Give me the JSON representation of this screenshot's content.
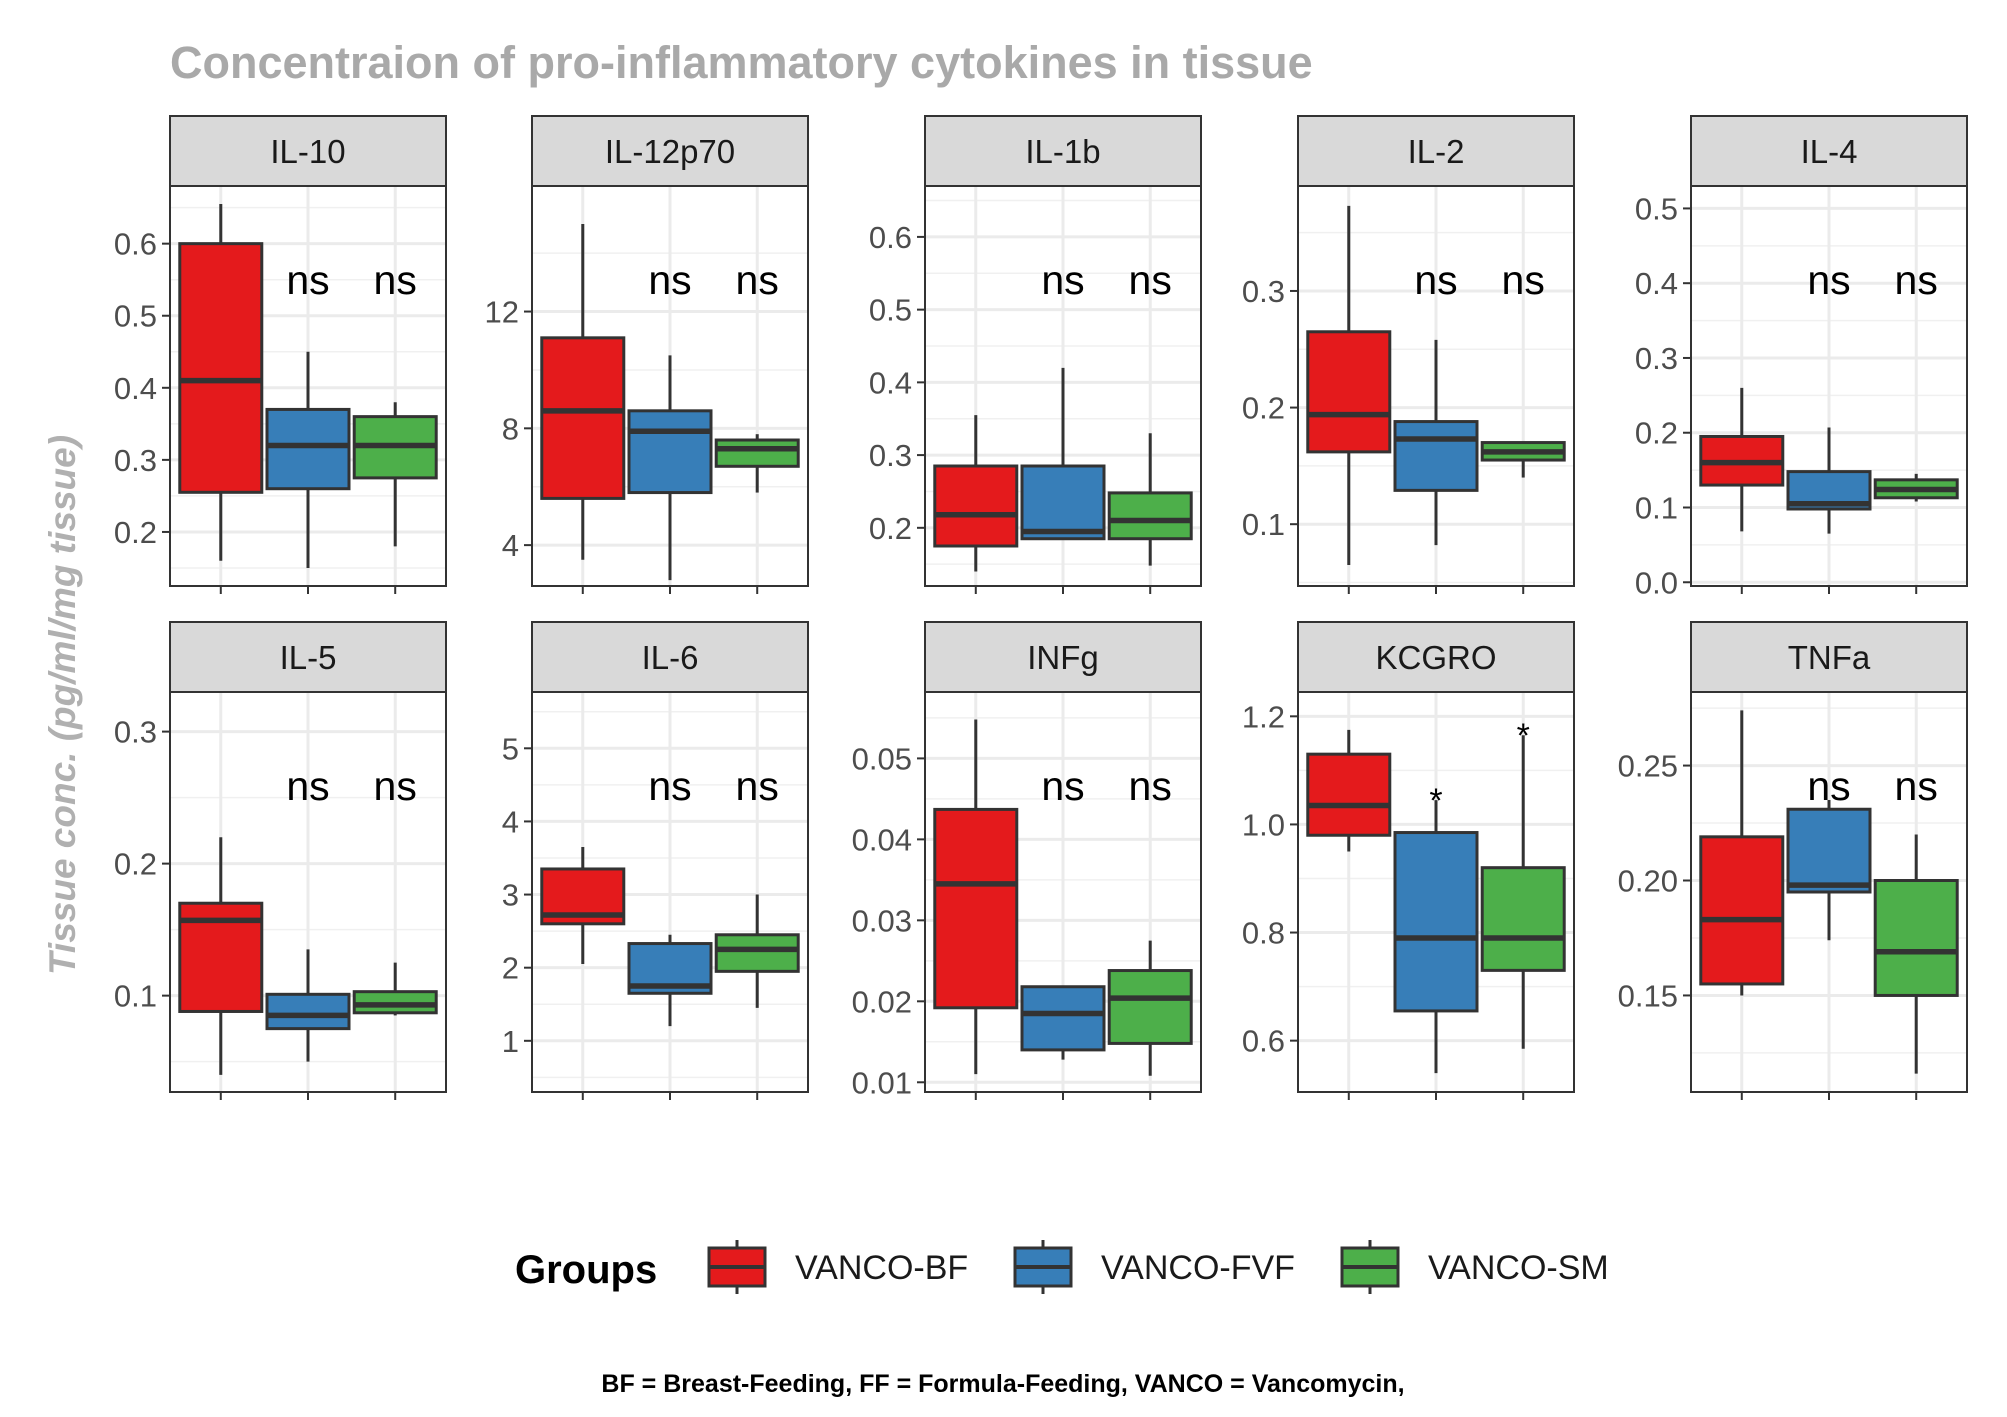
{
  "chart_data": {
    "type": "boxplot",
    "title": "Concentraion of pro-inflammatory cytokines in tissue",
    "ylabel": "Tissue conc. (pg/ml/mg tissue)",
    "xlabel": "",
    "caption": "BF = Breast-Feeding, FF = Formula-Feeding, VANCO = Vancomycin,",
    "legend": {
      "title": "Groups",
      "position": "bottom",
      "entries": [
        {
          "name": "VANCO-BF",
          "color": "#e41a1c"
        },
        {
          "name": "VANCO-FVF",
          "color": "#377eb8"
        },
        {
          "name": "VANCO-SM",
          "color": "#4daf4a"
        }
      ]
    },
    "grid": true,
    "facets": [
      {
        "name": "IL-10",
        "ylim": [
          0.125,
          0.68
        ],
        "yticks": [
          {
            "v": 0.2,
            "label": "0.2"
          },
          {
            "v": 0.3,
            "label": "0.3"
          },
          {
            "v": 0.4,
            "label": "0.4"
          },
          {
            "v": 0.5,
            "label": "0.5"
          },
          {
            "v": 0.6,
            "label": "0.6"
          }
        ],
        "groups": [
          {
            "min": 0.16,
            "q1": 0.255,
            "median": 0.41,
            "q3": 0.6,
            "max": 0.655,
            "label": ""
          },
          {
            "min": 0.15,
            "q1": 0.26,
            "median": 0.32,
            "q3": 0.37,
            "max": 0.45,
            "label": "ns"
          },
          {
            "min": 0.18,
            "q1": 0.275,
            "median": 0.32,
            "q3": 0.36,
            "max": 0.38,
            "label": "ns"
          }
        ]
      },
      {
        "name": "IL-12p70",
        "ylim": [
          2.6,
          16.3
        ],
        "yticks": [
          {
            "v": 4,
            "label": "4"
          },
          {
            "v": 8,
            "label": "8"
          },
          {
            "v": 12,
            "label": "12"
          }
        ],
        "groups": [
          {
            "min": 3.5,
            "q1": 5.6,
            "median": 8.6,
            "q3": 11.1,
            "max": 15.0,
            "label": ""
          },
          {
            "min": 2.8,
            "q1": 5.8,
            "median": 7.9,
            "q3": 8.6,
            "max": 10.5,
            "label": "ns"
          },
          {
            "min": 5.8,
            "q1": 6.7,
            "median": 7.3,
            "q3": 7.6,
            "max": 7.8,
            "label": "ns"
          }
        ]
      },
      {
        "name": "IL-1b",
        "ylim": [
          0.12,
          0.67
        ],
        "yticks": [
          {
            "v": 0.2,
            "label": "0.2"
          },
          {
            "v": 0.3,
            "label": "0.3"
          },
          {
            "v": 0.4,
            "label": "0.4"
          },
          {
            "v": 0.5,
            "label": "0.5"
          },
          {
            "v": 0.6,
            "label": "0.6"
          }
        ],
        "groups": [
          {
            "min": 0.14,
            "q1": 0.175,
            "median": 0.218,
            "q3": 0.285,
            "max": 0.355,
            "label": ""
          },
          {
            "min": 0.185,
            "q1": 0.185,
            "median": 0.195,
            "q3": 0.285,
            "max": 0.42,
            "label": "ns"
          },
          {
            "min": 0.148,
            "q1": 0.185,
            "median": 0.21,
            "q3": 0.248,
            "max": 0.33,
            "label": "ns"
          }
        ]
      },
      {
        "name": "IL-2",
        "ylim": [
          0.047,
          0.39
        ],
        "yticks": [
          {
            "v": 0.1,
            "label": "0.1"
          },
          {
            "v": 0.2,
            "label": "0.2"
          },
          {
            "v": 0.3,
            "label": "0.3"
          }
        ],
        "groups": [
          {
            "min": 0.065,
            "q1": 0.162,
            "median": 0.194,
            "q3": 0.265,
            "max": 0.373,
            "label": ""
          },
          {
            "min": 0.082,
            "q1": 0.129,
            "median": 0.173,
            "q3": 0.188,
            "max": 0.258,
            "label": "ns"
          },
          {
            "min": 0.14,
            "q1": 0.155,
            "median": 0.162,
            "q3": 0.17,
            "max": 0.17,
            "label": "ns"
          }
        ]
      },
      {
        "name": "IL-4",
        "ylim": [
          -0.005,
          0.53
        ],
        "yticks": [
          {
            "v": 0.0,
            "label": "0.0"
          },
          {
            "v": 0.1,
            "label": "0.1"
          },
          {
            "v": 0.2,
            "label": "0.2"
          },
          {
            "v": 0.3,
            "label": "0.3"
          },
          {
            "v": 0.4,
            "label": "0.4"
          },
          {
            "v": 0.5,
            "label": "0.5"
          }
        ],
        "groups": [
          {
            "min": 0.068,
            "q1": 0.13,
            "median": 0.16,
            "q3": 0.195,
            "max": 0.26,
            "label": ""
          },
          {
            "min": 0.065,
            "q1": 0.098,
            "median": 0.105,
            "q3": 0.148,
            "max": 0.207,
            "label": "ns"
          },
          {
            "min": 0.108,
            "q1": 0.113,
            "median": 0.124,
            "q3": 0.137,
            "max": 0.145,
            "label": "ns"
          }
        ]
      },
      {
        "name": "IL-5",
        "ylim": [
          0.027,
          0.33
        ],
        "yticks": [
          {
            "v": 0.1,
            "label": "0.1"
          },
          {
            "v": 0.2,
            "label": "0.2"
          },
          {
            "v": 0.3,
            "label": "0.3"
          }
        ],
        "groups": [
          {
            "min": 0.04,
            "q1": 0.088,
            "median": 0.157,
            "q3": 0.17,
            "max": 0.22,
            "label": ""
          },
          {
            "min": 0.05,
            "q1": 0.075,
            "median": 0.085,
            "q3": 0.101,
            "max": 0.135,
            "label": "ns"
          },
          {
            "min": 0.085,
            "q1": 0.087,
            "median": 0.093,
            "q3": 0.103,
            "max": 0.125,
            "label": "ns"
          }
        ]
      },
      {
        "name": "IL-6",
        "ylim": [
          0.3,
          5.77
        ],
        "yticks": [
          {
            "v": 1,
            "label": "1"
          },
          {
            "v": 2,
            "label": "2"
          },
          {
            "v": 3,
            "label": "3"
          },
          {
            "v": 4,
            "label": "4"
          },
          {
            "v": 5,
            "label": "5"
          }
        ],
        "groups": [
          {
            "min": 2.05,
            "q1": 2.6,
            "median": 2.72,
            "q3": 3.35,
            "max": 3.65,
            "label": ""
          },
          {
            "min": 1.2,
            "q1": 1.65,
            "median": 1.75,
            "q3": 2.33,
            "max": 2.45,
            "label": "ns"
          },
          {
            "min": 1.45,
            "q1": 1.95,
            "median": 2.25,
            "q3": 2.45,
            "max": 3.0,
            "label": "ns"
          }
        ]
      },
      {
        "name": "INFg",
        "ylim": [
          0.0088,
          0.0582
        ],
        "yticks": [
          {
            "v": 0.01,
            "label": "0.01"
          },
          {
            "v": 0.02,
            "label": "0.02"
          },
          {
            "v": 0.03,
            "label": "0.03"
          },
          {
            "v": 0.04,
            "label": "0.04"
          },
          {
            "v": 0.05,
            "label": "0.05"
          }
        ],
        "groups": [
          {
            "min": 0.011,
            "q1": 0.0192,
            "median": 0.0345,
            "q3": 0.0437,
            "max": 0.0548,
            "label": ""
          },
          {
            "min": 0.0128,
            "q1": 0.014,
            "median": 0.0185,
            "q3": 0.0218,
            "max": 0.0218,
            "label": "ns"
          },
          {
            "min": 0.0108,
            "q1": 0.0148,
            "median": 0.0204,
            "q3": 0.0238,
            "max": 0.0275,
            "label": "ns"
          }
        ]
      },
      {
        "name": "KCGRO",
        "ylim": [
          0.505,
          1.245
        ],
        "yticks": [
          {
            "v": 0.6,
            "label": "0.6"
          },
          {
            "v": 0.8,
            "label": "0.8"
          },
          {
            "v": 1.0,
            "label": "1.0"
          },
          {
            "v": 1.2,
            "label": "1.2"
          }
        ],
        "groups": [
          {
            "min": 0.95,
            "q1": 0.98,
            "median": 1.035,
            "q3": 1.13,
            "max": 1.175,
            "label": ""
          },
          {
            "min": 0.54,
            "q1": 0.655,
            "median": 0.79,
            "q3": 0.985,
            "max": 1.045,
            "label": "*"
          },
          {
            "min": 0.585,
            "q1": 0.73,
            "median": 0.79,
            "q3": 0.92,
            "max": 1.165,
            "label": "*"
          }
        ]
      },
      {
        "name": "TNFa",
        "ylim": [
          0.108,
          0.282
        ],
        "yticks": [
          {
            "v": 0.15,
            "label": "0.15"
          },
          {
            "v": 0.2,
            "label": "0.20"
          },
          {
            "v": 0.25,
            "label": "0.25"
          }
        ],
        "groups": [
          {
            "min": 0.15,
            "q1": 0.155,
            "median": 0.183,
            "q3": 0.219,
            "max": 0.274,
            "label": ""
          },
          {
            "min": 0.174,
            "q1": 0.195,
            "median": 0.198,
            "q3": 0.231,
            "max": 0.235,
            "label": "ns"
          },
          {
            "min": 0.116,
            "q1": 0.15,
            "median": 0.169,
            "q3": 0.2,
            "max": 0.22,
            "label": "ns"
          }
        ]
      }
    ]
  }
}
